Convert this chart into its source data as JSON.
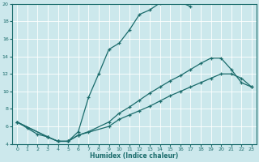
{
  "xlabel": "Humidex (Indice chaleur)",
  "xlim": [
    -0.5,
    23.5
  ],
  "ylim": [
    4,
    20
  ],
  "yticks": [
    4,
    6,
    8,
    10,
    12,
    14,
    16,
    18,
    20
  ],
  "xticks": [
    0,
    1,
    2,
    3,
    4,
    5,
    6,
    7,
    8,
    9,
    10,
    11,
    12,
    13,
    14,
    15,
    16,
    17,
    18,
    19,
    20,
    21,
    22,
    23
  ],
  "bg_color": "#cce8ec",
  "line_color": "#1a6b6b",
  "line1": {
    "x": [
      0,
      1,
      2,
      3,
      4,
      5,
      6,
      7,
      8,
      9,
      10,
      11,
      12,
      13,
      14,
      15,
      16,
      17
    ],
    "y": [
      6.5,
      5.8,
      5.1,
      4.8,
      4.3,
      4.3,
      5.4,
      9.3,
      12.0,
      14.8,
      15.5,
      17.0,
      18.8,
      19.3,
      20.1,
      20.3,
      20.2,
      19.7
    ]
  },
  "line2": {
    "x": [
      0,
      3,
      4,
      5,
      6,
      7,
      9,
      10,
      11,
      12,
      13,
      14,
      15,
      16,
      17,
      18,
      19,
      20,
      21,
      22,
      23
    ],
    "y": [
      6.5,
      4.8,
      4.3,
      4.3,
      5.0,
      5.4,
      6.5,
      7.5,
      8.2,
      9.0,
      9.8,
      10.5,
      11.2,
      11.8,
      12.5,
      13.2,
      13.8,
      13.8,
      12.5,
      11.0,
      10.5
    ]
  },
  "line3": {
    "x": [
      0,
      3,
      4,
      5,
      6,
      9,
      10,
      11,
      12,
      13,
      14,
      15,
      16,
      17,
      18,
      19,
      20,
      21,
      22,
      23
    ],
    "y": [
      6.5,
      4.8,
      4.3,
      4.3,
      5.0,
      6.0,
      6.8,
      7.3,
      7.8,
      8.3,
      8.9,
      9.5,
      10.0,
      10.5,
      11.0,
      11.5,
      12.0,
      12.0,
      11.5,
      10.5
    ]
  }
}
